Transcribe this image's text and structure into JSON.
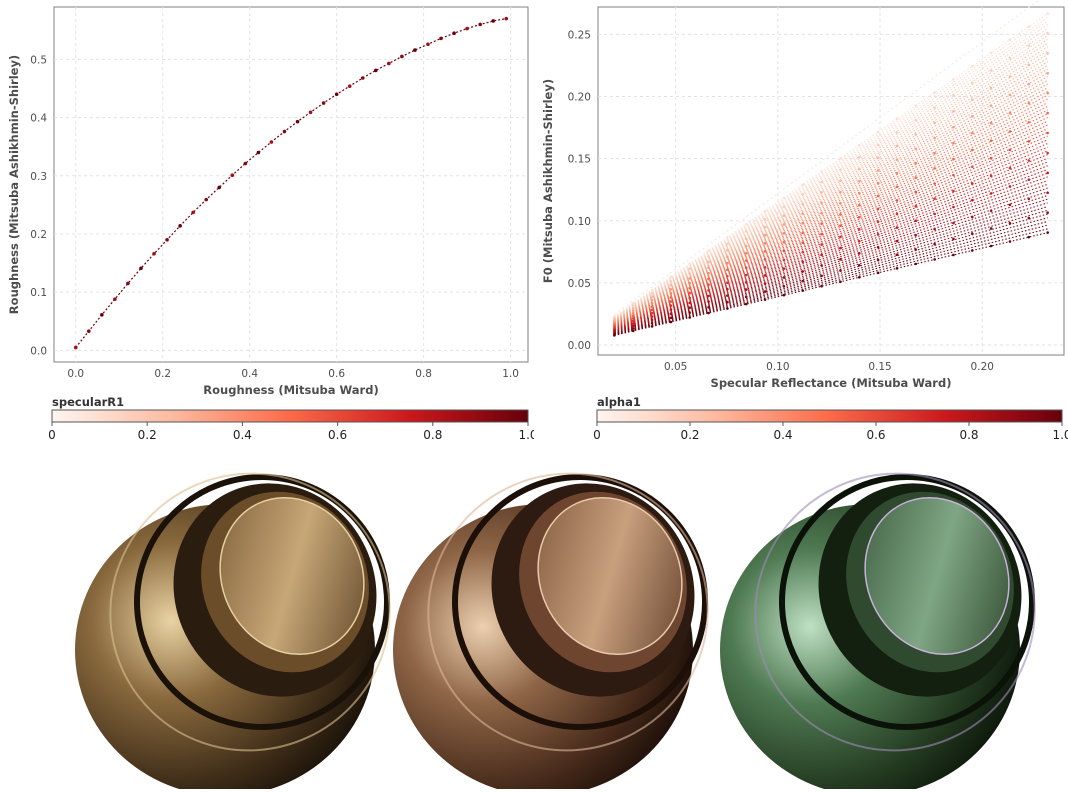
{
  "chart_data": [
    {
      "type": "scatter",
      "xlabel": "Roughness (Mitsuba Ward)",
      "ylabel": "Roughness (Mitsuba Ashikhmin-Shirley)",
      "xlim": [
        -0.05,
        1.04
      ],
      "ylim": [
        -0.02,
        0.59
      ],
      "x_ticks": [
        "0.0",
        "0.2",
        "0.4",
        "0.6",
        "0.8",
        "1.0"
      ],
      "y_ticks": [
        "0.0",
        "0.1",
        "0.2",
        "0.3",
        "0.4",
        "0.5"
      ],
      "grid": true,
      "colorbar": {
        "label": "specularR1",
        "ticks": [
          "0",
          "0.2",
          "0.4",
          "0.6",
          "0.8",
          "1.0"
        ],
        "colors": [
          "#fff5f0",
          "#fcbba1",
          "#fb6a4a",
          "#cb181d",
          "#67000d"
        ]
      },
      "series": [
        {
          "x": [
            0.0,
            0.03,
            0.06,
            0.09,
            0.12,
            0.15,
            0.18,
            0.21,
            0.24,
            0.27,
            0.3,
            0.33,
            0.36,
            0.39,
            0.42,
            0.45,
            0.48,
            0.51,
            0.54,
            0.57,
            0.6,
            0.63,
            0.66,
            0.69,
            0.72,
            0.75,
            0.78,
            0.81,
            0.84,
            0.87,
            0.9,
            0.93,
            0.96,
            0.99
          ],
          "y": [
            0.005,
            0.033,
            0.061,
            0.088,
            0.115,
            0.141,
            0.166,
            0.19,
            0.214,
            0.237,
            0.259,
            0.28,
            0.301,
            0.321,
            0.34,
            0.358,
            0.376,
            0.393,
            0.409,
            0.425,
            0.44,
            0.454,
            0.468,
            0.481,
            0.493,
            0.505,
            0.516,
            0.526,
            0.536,
            0.545,
            0.553,
            0.56,
            0.566,
            0.57
          ]
        }
      ]
    },
    {
      "type": "scatter",
      "xlabel": "Specular Reflectance (Mitsuba Ward)",
      "ylabel": "F0 (Mitsuba Ashikhmin-Shirley)",
      "xlim": [
        0.012,
        0.24
      ],
      "ylim": [
        -0.008,
        0.272
      ],
      "x_ticks": [
        "0.05",
        "0.10",
        "0.15",
        "0.20"
      ],
      "y_ticks": [
        "0.00",
        "0.05",
        "0.10",
        "0.15",
        "0.20",
        "0.25"
      ],
      "grid": true,
      "colorbar": {
        "label": "alpha1",
        "ticks": [
          "0",
          "0.2",
          "0.4",
          "0.6",
          "0.8",
          "1.0"
        ],
        "colors": [
          "#fff5f0",
          "#fcbba1",
          "#fb6a4a",
          "#cb181d",
          "#67000d"
        ]
      },
      "x_range": [
        0.02,
        0.232
      ],
      "alpha_range": [
        0.0,
        1.0
      ],
      "f0_low_slope": 0.39,
      "f0_high_slope": 1.15,
      "f0_line_slope": 1.22
    }
  ],
  "renders": [
    {
      "tint": "#b08a55"
    },
    {
      "tint": "#a77b58"
    },
    {
      "tint": "#4f6e4c"
    }
  ]
}
